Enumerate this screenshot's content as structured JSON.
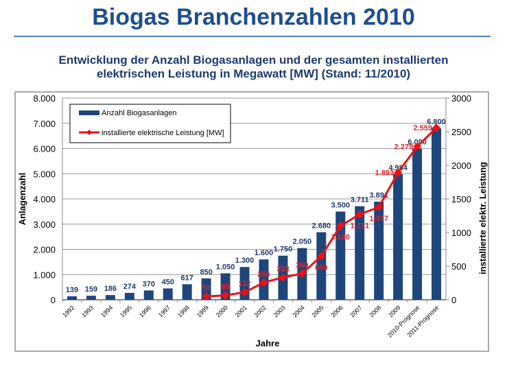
{
  "title": "Biogas Branchenzahlen 2010",
  "subtitle_line1": "Entwicklung der Anzahl Biogasanlagen und der gesamten installierten",
  "subtitle_line2": "elektrischen Leistung in Megawatt [MW] (Stand: 11/2010)",
  "chart_data": {
    "type": "bar+line",
    "xlabel": "Jahre",
    "ylabel": "Anlagenzahl",
    "y2label": "installierte elektr. Leistung",
    "ylim": [
      0,
      8000
    ],
    "y2lim": [
      0,
      3000
    ],
    "yticks": [
      "0",
      "1.000",
      "2.000",
      "3.000",
      "4.000",
      "5.000",
      "6.000",
      "7.000",
      "8.000"
    ],
    "y2ticks": [
      "0",
      "500",
      "1000",
      "1500",
      "2000",
      "2500",
      "3000"
    ],
    "grid": true,
    "legend_placement": "top-left",
    "categories": [
      "1992",
      "1993",
      "1994",
      "1995",
      "1996",
      "1997",
      "1998",
      "1999",
      "2000",
      "2001",
      "2002",
      "2003",
      "2004",
      "2005",
      "2006",
      "2007",
      "2008",
      "2009",
      "2010-Prognose",
      "2011-Prognose"
    ],
    "series": [
      {
        "name": "Anzahl Biogasanlagen",
        "type": "bar",
        "axis": "left",
        "color": "#1f467a",
        "values": [
          139,
          159,
          186,
          274,
          370,
          450,
          617,
          850,
          1050,
          1300,
          1600,
          1750,
          2050,
          2680,
          3500,
          3711,
          3891,
          4984,
          6000,
          6800
        ],
        "labels": [
          "139",
          "159",
          "186",
          "274",
          "370",
          "450",
          "617",
          "850",
          "1.050",
          "1.300",
          "1.600",
          "1.750",
          "2.050",
          "2.680",
          "3.500",
          "3.711",
          "3.891",
          "4.984",
          "6.000",
          "6.800"
        ]
      },
      {
        "name": "installierte elektrische Leistung [MW]",
        "type": "line",
        "axis": "right",
        "color": "#ee1111",
        "values": [
          null,
          null,
          null,
          null,
          null,
          null,
          null,
          50,
          65,
          112,
          256,
          333,
          390,
          650,
          1100,
          1271,
          1377,
          1893,
          2279,
          2559
        ],
        "labels": [
          null,
          null,
          null,
          null,
          null,
          null,
          null,
          "50",
          "65",
          "112",
          "256",
          "333",
          "390",
          "650",
          "1.100",
          "1.271",
          "1.377",
          "1.893",
          "2.279",
          "2.559"
        ]
      }
    ]
  }
}
